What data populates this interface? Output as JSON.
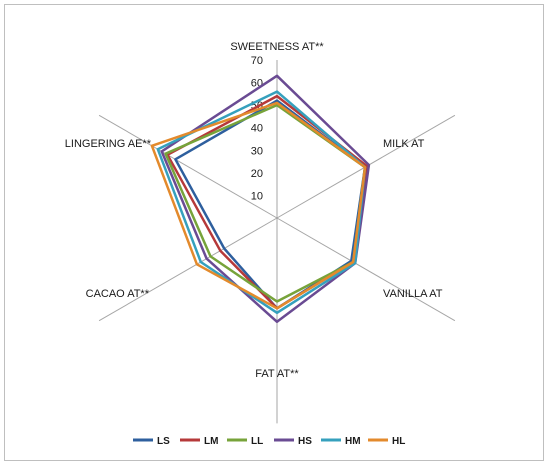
{
  "chart_data": {
    "type": "radar",
    "axes": [
      "SWEETNESS AT**",
      "MILK AT",
      "VANILLA AT",
      "FAT AT**",
      "CACAO AT**",
      "LINGERING AE**"
    ],
    "ticks": [
      10,
      20,
      30,
      40,
      50,
      60,
      70
    ],
    "rmax": 70,
    "grid": "spokes",
    "legend_position": "bottom",
    "series": [
      {
        "name": "LS",
        "color": "#2e5f9e",
        "values": [
          52,
          45,
          38,
          40,
          27,
          52
        ]
      },
      {
        "name": "LM",
        "color": "#b6393a",
        "values": [
          54,
          46,
          39,
          40,
          29,
          56
        ]
      },
      {
        "name": "LL",
        "color": "#77a33a",
        "values": [
          50,
          45,
          39,
          37,
          34,
          57
        ]
      },
      {
        "name": "HS",
        "color": "#6a4b93",
        "values": [
          63,
          47,
          40,
          46,
          36,
          59
        ]
      },
      {
        "name": "HM",
        "color": "#35a0bd",
        "values": [
          56,
          45,
          40,
          42,
          39,
          61
        ]
      },
      {
        "name": "HL",
        "color": "#e38a2c",
        "values": [
          51,
          45,
          39,
          40,
          41,
          64
        ]
      }
    ]
  }
}
